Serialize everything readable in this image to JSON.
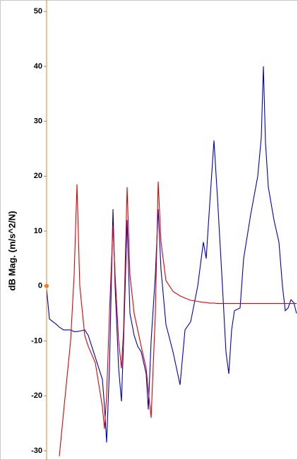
{
  "chart_data": {
    "type": "line",
    "y_label": "dB Mag. (m/s^2/N)",
    "x": [
      0,
      4,
      14,
      18,
      24,
      34,
      39,
      43,
      47,
      54,
      59,
      69,
      79,
      82,
      85,
      89,
      94,
      97,
      102,
      106,
      109,
      114,
      118,
      124,
      129,
      134,
      141,
      144,
      148,
      154,
      158,
      162,
      169,
      179,
      189,
      196,
      204,
      214,
      222,
      226,
      230,
      237,
      242,
      249,
      254,
      258,
      262,
      266,
      274,
      279,
      289,
      299,
      304,
      307,
      310,
      314,
      322,
      329,
      334,
      338,
      342,
      346,
      350,
      354
    ],
    "xlim": [
      0,
      354
    ],
    "ylim": [
      -31.3,
      51.7
    ],
    "yticks": [
      50,
      40,
      30,
      20,
      10,
      0,
      -10,
      -20,
      -30
    ],
    "series": [
      {
        "color": "#0000c0",
        "values": [
          -0.5,
          -6,
          -7,
          -7.5,
          -8,
          -8,
          -8.3,
          -8.3,
          -8.2,
          -8,
          -9,
          -13,
          -17,
          -22,
          -28.5,
          -15,
          14,
          0,
          -15,
          -21,
          -10,
          12,
          -5,
          -9,
          -11,
          -12,
          -16,
          -22.5,
          -10,
          2,
          14,
          3,
          -7,
          -12,
          -18,
          -8,
          -6.5,
          0,
          8,
          5,
          13,
          26.5,
          16,
          0,
          -12,
          -16,
          -8,
          -4.5,
          -4,
          5,
          13,
          20,
          27,
          40,
          26,
          18,
          12,
          8,
          0,
          -4.5,
          -4,
          -2.5,
          -3,
          -5
        ]
      },
      {
        "color": "#e00000",
        "values": [
          null,
          null,
          null,
          -31,
          -23,
          -10,
          2,
          18.5,
          0,
          -9,
          -11,
          -14,
          -22,
          -26,
          -20,
          -5,
          11,
          2,
          -10,
          -15,
          -8,
          18,
          2,
          -5,
          -8,
          -11,
          -15,
          -19,
          -24,
          -5,
          19,
          8,
          1,
          -1,
          -1.8,
          -2.2,
          -2.6,
          -2.8,
          -3,
          -3,
          -3.1,
          -3.1,
          -3.2,
          -3.2,
          -3.2,
          -3.2,
          -3.2,
          -3.2,
          -3.2,
          -3.2,
          -3.2,
          -3.2,
          -3.2,
          -3.2,
          -3.2,
          -3.2,
          -3.2,
          -3.2,
          -3.2,
          -3.2,
          -3.2,
          -3.2,
          -3.2,
          -3.2
        ]
      }
    ],
    "axis_color": "#f08020"
  }
}
